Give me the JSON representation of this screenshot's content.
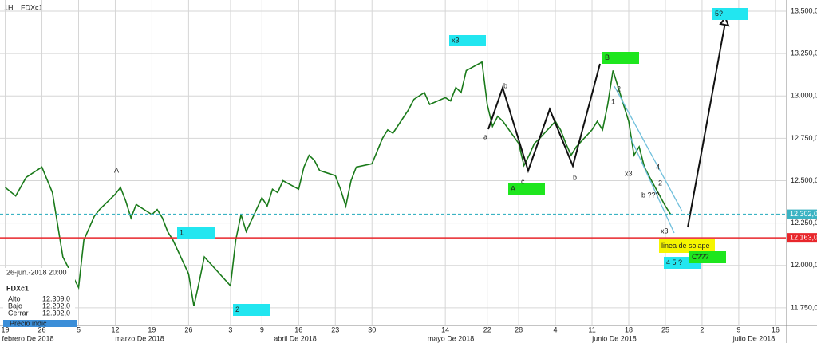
{
  "chart_data": {
    "type": "line",
    "header": "1H",
    "symbol": "FDXc1",
    "x": [
      "2018-02-19",
      "2018-02-21",
      "2018-02-23",
      "2018-02-26",
      "2018-02-28",
      "2018-03-02",
      "2018-03-05",
      "2018-03-06",
      "2018-03-08",
      "2018-03-09",
      "2018-03-12",
      "2018-03-13",
      "2018-03-14",
      "2018-03-15",
      "2018-03-16",
      "2018-03-19",
      "2018-03-20",
      "2018-03-21",
      "2018-03-22",
      "2018-03-23",
      "2018-03-26",
      "2018-03-27",
      "2018-03-28",
      "2018-03-29",
      "2018-04-03",
      "2018-04-04",
      "2018-04-05",
      "2018-04-06",
      "2018-04-09",
      "2018-04-10",
      "2018-04-11",
      "2018-04-12",
      "2018-04-13",
      "2018-04-16",
      "2018-04-17",
      "2018-04-18",
      "2018-04-19",
      "2018-04-20",
      "2018-04-23",
      "2018-04-24",
      "2018-04-25",
      "2018-04-26",
      "2018-04-27",
      "2018-04-30",
      "2018-05-02",
      "2018-05-03",
      "2018-05-04",
      "2018-05-07",
      "2018-05-08",
      "2018-05-09",
      "2018-05-10",
      "2018-05-11",
      "2018-05-14",
      "2018-05-15",
      "2018-05-16",
      "2018-05-17",
      "2018-05-18",
      "2018-05-21",
      "2018-05-22",
      "2018-05-23",
      "2018-05-24",
      "2018-05-25",
      "2018-05-28",
      "2018-05-29",
      "2018-05-30",
      "2018-05-31",
      "2018-06-01",
      "2018-06-04",
      "2018-06-05",
      "2018-06-06",
      "2018-06-07",
      "2018-06-08",
      "2018-06-11",
      "2018-06-12",
      "2018-06-13",
      "2018-06-14",
      "2018-06-15",
      "2018-06-18",
      "2018-06-19",
      "2018-06-20",
      "2018-06-21",
      "2018-06-22",
      "2018-06-25",
      "2018-06-26"
    ],
    "series": [
      {
        "name": "FDXc1",
        "color": "#1a7a1a",
        "values": [
          12460,
          12410,
          12520,
          12580,
          12430,
          12050,
          11870,
          12150,
          12290,
          12330,
          12420,
          12460,
          12380,
          12280,
          12360,
          12300,
          12330,
          12280,
          12200,
          12150,
          11950,
          11760,
          11900,
          12050,
          11880,
          12150,
          12300,
          12200,
          12400,
          12350,
          12450,
          12430,
          12500,
          12450,
          12580,
          12650,
          12620,
          12560,
          12530,
          12450,
          12350,
          12500,
          12580,
          12600,
          12750,
          12800,
          12780,
          12920,
          12980,
          13000,
          13020,
          12950,
          12990,
          12970,
          13050,
          13020,
          13150,
          13200,
          12950,
          12820,
          12880,
          12850,
          12720,
          12590,
          12650,
          12720,
          12750,
          12850,
          12800,
          12720,
          12650,
          12700,
          12800,
          12850,
          12800,
          12950,
          13150,
          12850,
          12650,
          12700,
          12580,
          12520,
          12350,
          12302
        ]
      }
    ],
    "xlim": [
      "2018-02-18",
      "2018-07-18"
    ],
    "xticks": [
      {
        "value": "2018-02-19",
        "label": "19"
      },
      {
        "value": "2018-02-26",
        "label": "26"
      },
      {
        "value": "2018-03-05",
        "label": "5"
      },
      {
        "value": "2018-03-12",
        "label": "12"
      },
      {
        "value": "2018-03-19",
        "label": "19"
      },
      {
        "value": "2018-03-26",
        "label": "26"
      },
      {
        "value": "2018-04-03",
        "label": "3"
      },
      {
        "value": "2018-04-09",
        "label": "9"
      },
      {
        "value": "2018-04-16",
        "label": "16"
      },
      {
        "value": "2018-04-23",
        "label": "23"
      },
      {
        "value": "2018-04-30",
        "label": "30"
      },
      {
        "value": "2018-05-14",
        "label": "14"
      },
      {
        "value": "2018-05-22",
        "label": "22"
      },
      {
        "value": "2018-05-28",
        "label": "28"
      },
      {
        "value": "2018-06-04",
        "label": "4"
      },
      {
        "value": "2018-06-11",
        "label": "11"
      },
      {
        "value": "2018-06-18",
        "label": "18"
      },
      {
        "value": "2018-06-25",
        "label": "25"
      },
      {
        "value": "2018-07-02",
        "label": "2"
      },
      {
        "value": "2018-07-09",
        "label": "9"
      },
      {
        "value": "2018-07-16",
        "label": "16"
      }
    ],
    "months": [
      "febrero De 2018",
      "marzo De 2018",
      "abril De 2018",
      "mayo De 2018",
      "junio De 2018",
      "julio De 2018"
    ],
    "ylim": [
      11646,
      13566
    ],
    "yticks": [
      {
        "value": 13500,
        "label": "13.500,0"
      },
      {
        "value": 13250,
        "label": "13.250,0"
      },
      {
        "value": 13000,
        "label": "13.000,0"
      },
      {
        "value": 12750,
        "label": "12.750,0"
      },
      {
        "value": 12500,
        "label": "12.500,0"
      },
      {
        "value": 12250,
        "label": "12.250,0"
      },
      {
        "value": 12000,
        "label": "12.000,0"
      },
      {
        "value": 11750,
        "label": "11.750,0"
      }
    ],
    "grid": true,
    "hlines": [
      {
        "value": 12302,
        "label": "12.302,0",
        "color": "#3bb3c3",
        "dashed": true
      },
      {
        "value": 12163,
        "label": "12.163,0",
        "color": "#e8262b",
        "dashed": false
      }
    ],
    "boxes": [
      {
        "text": "x3",
        "color": "#22e6f0"
      },
      {
        "text": "B",
        "color": "#1ee61e"
      },
      {
        "text": "5?",
        "color": "#22e6f0"
      },
      {
        "text": "1",
        "color": "#22e6f0"
      },
      {
        "text": "2",
        "color": "#22e6f0"
      },
      {
        "text": "A",
        "color": "#1ee61e"
      },
      {
        "text": "linea de solape",
        "color": "#f5f500"
      },
      {
        "text": "4 5 ?",
        "color": "#22e6f0"
      },
      {
        "text": "C???",
        "color": "#1ee61e"
      }
    ],
    "notes": [
      "a",
      "b",
      "c",
      "b",
      "1",
      "2",
      "x3",
      "b ???",
      "x3",
      "A",
      "4",
      "2"
    ],
    "info": {
      "date": "26-jun.-2018 20:00",
      "symbol": "FDXc1",
      "rows": [
        [
          "Alto",
          "12.309,0"
        ],
        [
          "Bajo",
          "12.292,0"
        ],
        [
          "Cerrar",
          "12.302,0"
        ]
      ],
      "footer": "Precio indic"
    }
  }
}
